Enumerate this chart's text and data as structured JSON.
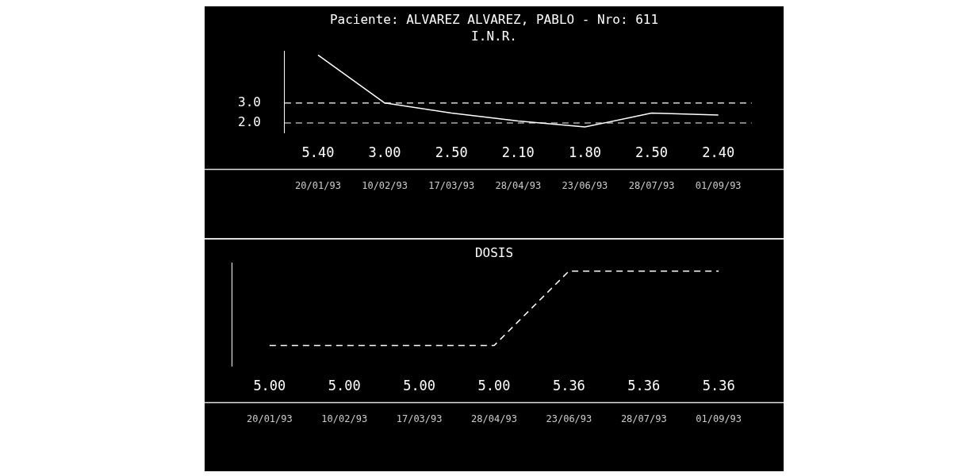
{
  "chart_data": [
    {
      "type": "line",
      "title": "Paciente: ALVAREZ ALVAREZ, PABLO - Nro: 611",
      "subtitle": "I.N.R.",
      "categories": [
        "20/01/93",
        "10/02/93",
        "17/03/93",
        "28/04/93",
        "23/06/93",
        "28/07/93",
        "01/09/93"
      ],
      "values": [
        5.4,
        3.0,
        2.5,
        2.1,
        1.8,
        2.5,
        2.4
      ],
      "value_labels": [
        "5.40",
        "3.00",
        "2.50",
        "2.10",
        "1.80",
        "2.50",
        "2.40"
      ],
      "color": "#ffffff",
      "ylim": [
        1.5,
        5.6
      ],
      "yticks": [
        {
          "value": 2,
          "label": "2.0"
        },
        {
          "value": 3,
          "label": "3.0"
        }
      ],
      "ref_lines": [
        {
          "axis": "y",
          "value": 3,
          "color": "#ffffff",
          "line_style": "dashed"
        },
        {
          "axis": "y",
          "value": 2,
          "color": "#ffffff",
          "line_style": "dashed"
        }
      ],
      "grid": false,
      "legend": false,
      "marker": "none",
      "line_style": "solid"
    },
    {
      "type": "line",
      "title": "DOSIS",
      "categories": [
        "20/01/93",
        "10/02/93",
        "17/03/93",
        "28/04/93",
        "23/06/93",
        "28/07/93",
        "01/09/93"
      ],
      "values": [
        5.0,
        5.0,
        5.0,
        5.0,
        5.36,
        5.36,
        5.36
      ],
      "value_labels": [
        "5.00",
        "5.00",
        "5.00",
        "5.00",
        "5.36",
        "5.36",
        "5.36"
      ],
      "color": "#ffffff",
      "grid": false,
      "legend": false,
      "marker": "none",
      "line_style": "dashed",
      "tick_labels": "x"
    }
  ]
}
